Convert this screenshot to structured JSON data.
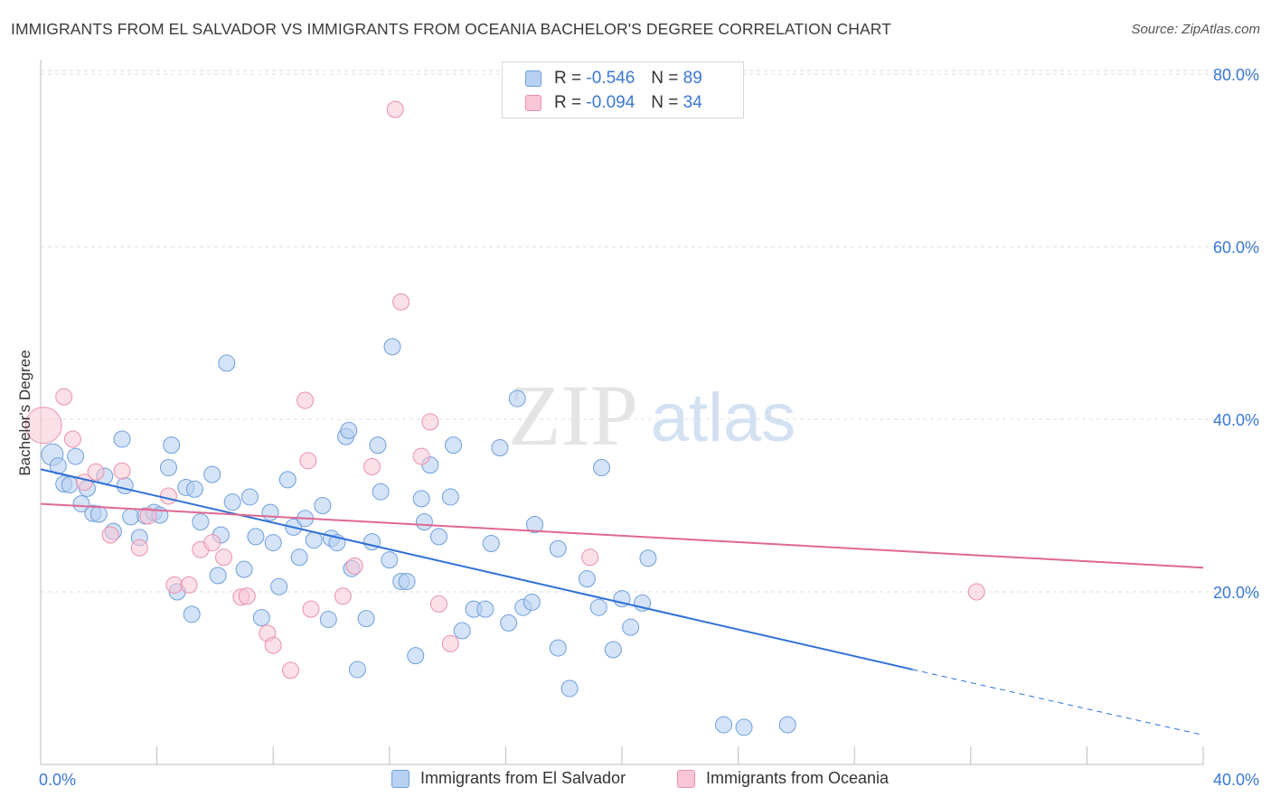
{
  "header": {
    "title": "IMMIGRANTS FROM EL SALVADOR VS IMMIGRANTS FROM OCEANIA BACHELOR'S DEGREE CORRELATION CHART",
    "source": "Source: ZipAtlas.com"
  },
  "watermark": {
    "zip": "ZIP",
    "atlas": "atlas"
  },
  "legend": {
    "rows": [
      {
        "r_label": "R =",
        "r_value": "-0.546",
        "n_label": "N =",
        "n_value": "89"
      },
      {
        "r_label": "R =",
        "r_value": "-0.094",
        "n_label": "N =",
        "n_value": "34"
      }
    ]
  },
  "bottom_legend": {
    "series1": "Immigrants from El Salvador",
    "series2": "Immigrants from Oceania"
  },
  "chart_data": {
    "type": "scatter",
    "title": "IMMIGRANTS FROM EL SALVADOR VS IMMIGRANTS FROM OCEANIA BACHELOR'S DEGREE CORRELATION CHART",
    "xlabel": "",
    "ylabel": "Bachelor's Degree",
    "xlim": [
      0,
      40
    ],
    "ylim": [
      0,
      82
    ],
    "x_tick_labels": [
      "0.0%",
      "40.0%"
    ],
    "y_ticks": [
      20,
      40,
      60,
      80
    ],
    "y_tick_labels": [
      "20.0%",
      "40.0%",
      "60.0%",
      "80.0%"
    ],
    "grid": true,
    "legend_position": "top-center",
    "colors": {
      "series1_fill": "#b8d1f2",
      "series1_stroke": "#6f9fdc",
      "series1_line": "#2e70d6",
      "series2_fill": "#f8c6d6",
      "series2_stroke": "#eb8fae",
      "series2_line": "#e06792",
      "tick_label": "#3a78d4"
    },
    "series": [
      {
        "name": "Immigrants from El Salvador",
        "trend": {
          "x0": 0,
          "y0": 34.2,
          "x1": 30,
          "y1": 11.0,
          "dash_to_x": 40,
          "dash_to_y": 3.4
        },
        "points": [
          [
            0.4,
            35.9
          ],
          [
            0.6,
            34.6
          ],
          [
            0.8,
            32.5
          ],
          [
            1.0,
            32.4
          ],
          [
            1.2,
            35.7
          ],
          [
            1.4,
            30.2
          ],
          [
            1.6,
            32.0
          ],
          [
            1.8,
            29.1
          ],
          [
            2.0,
            29.0
          ],
          [
            2.2,
            33.4
          ],
          [
            2.5,
            27.0
          ],
          [
            2.8,
            37.7
          ],
          [
            2.9,
            32.3
          ],
          [
            3.1,
            28.7
          ],
          [
            3.4,
            26.3
          ],
          [
            3.6,
            28.8
          ],
          [
            3.9,
            29.2
          ],
          [
            4.1,
            28.9
          ],
          [
            4.4,
            34.4
          ],
          [
            4.5,
            37.0
          ],
          [
            4.7,
            20.0
          ],
          [
            5.0,
            32.1
          ],
          [
            5.2,
            17.4
          ],
          [
            5.3,
            31.9
          ],
          [
            5.5,
            28.1
          ],
          [
            5.9,
            33.6
          ],
          [
            6.1,
            21.9
          ],
          [
            6.2,
            26.6
          ],
          [
            6.4,
            46.5
          ],
          [
            6.6,
            30.4
          ],
          [
            7.0,
            22.6
          ],
          [
            7.2,
            31.0
          ],
          [
            7.4,
            26.4
          ],
          [
            7.6,
            17.0
          ],
          [
            7.9,
            29.2
          ],
          [
            8.0,
            25.7
          ],
          [
            8.2,
            20.6
          ],
          [
            8.5,
            33.0
          ],
          [
            8.7,
            27.5
          ],
          [
            8.9,
            24.0
          ],
          [
            9.1,
            28.5
          ],
          [
            9.4,
            26.0
          ],
          [
            9.7,
            30.0
          ],
          [
            9.9,
            16.8
          ],
          [
            10.0,
            26.2
          ],
          [
            10.2,
            25.7
          ],
          [
            10.5,
            38.0
          ],
          [
            10.6,
            38.7
          ],
          [
            10.7,
            22.7
          ],
          [
            10.9,
            11.0
          ],
          [
            11.2,
            16.9
          ],
          [
            11.4,
            25.8
          ],
          [
            11.6,
            37.0
          ],
          [
            11.7,
            31.6
          ],
          [
            12.0,
            23.7
          ],
          [
            12.1,
            48.4
          ],
          [
            12.4,
            21.2
          ],
          [
            12.6,
            21.2
          ],
          [
            12.9,
            12.6
          ],
          [
            13.1,
            30.8
          ],
          [
            13.2,
            28.1
          ],
          [
            13.4,
            34.7
          ],
          [
            13.7,
            26.4
          ],
          [
            14.1,
            31.0
          ],
          [
            14.2,
            37.0
          ],
          [
            14.5,
            15.5
          ],
          [
            14.9,
            18.0
          ],
          [
            15.3,
            18.0
          ],
          [
            15.5,
            25.6
          ],
          [
            15.8,
            36.7
          ],
          [
            16.1,
            16.4
          ],
          [
            16.4,
            42.4
          ],
          [
            16.6,
            18.2
          ],
          [
            16.9,
            18.8
          ],
          [
            17.0,
            27.8
          ],
          [
            17.8,
            25.0
          ],
          [
            17.8,
            13.5
          ],
          [
            18.2,
            8.8
          ],
          [
            18.8,
            21.5
          ],
          [
            19.2,
            18.2
          ],
          [
            19.3,
            34.4
          ],
          [
            19.7,
            13.3
          ],
          [
            20.0,
            19.2
          ],
          [
            20.3,
            15.9
          ],
          [
            20.7,
            18.7
          ],
          [
            20.9,
            23.9
          ],
          [
            23.5,
            4.6
          ],
          [
            24.2,
            4.3
          ],
          [
            25.7,
            4.6
          ]
        ]
      },
      {
        "name": "Immigrants from Oceania",
        "trend": {
          "x0": 0,
          "y0": 30.2,
          "x1": 40,
          "y1": 22.8
        },
        "points": [
          [
            0.1,
            39.3
          ],
          [
            0.8,
            42.6
          ],
          [
            1.1,
            37.7
          ],
          [
            1.5,
            32.7
          ],
          [
            1.9,
            33.9
          ],
          [
            2.4,
            26.6
          ],
          [
            2.8,
            34.0
          ],
          [
            3.4,
            25.1
          ],
          [
            3.7,
            28.8
          ],
          [
            4.4,
            31.1
          ],
          [
            4.6,
            20.8
          ],
          [
            5.1,
            20.8
          ],
          [
            5.5,
            24.9
          ],
          [
            5.9,
            25.7
          ],
          [
            6.3,
            24.0
          ],
          [
            6.9,
            19.4
          ],
          [
            7.1,
            19.5
          ],
          [
            7.8,
            15.2
          ],
          [
            8.0,
            13.8
          ],
          [
            8.6,
            10.9
          ],
          [
            9.1,
            42.2
          ],
          [
            9.2,
            35.2
          ],
          [
            9.3,
            18.0
          ],
          [
            10.4,
            19.5
          ],
          [
            10.8,
            23.0
          ],
          [
            11.4,
            34.5
          ],
          [
            12.2,
            75.9
          ],
          [
            12.4,
            53.6
          ],
          [
            13.1,
            35.7
          ],
          [
            13.4,
            39.7
          ],
          [
            13.7,
            18.6
          ],
          [
            14.1,
            14.0
          ],
          [
            18.9,
            24.0
          ],
          [
            32.2,
            20.0
          ]
        ]
      }
    ]
  }
}
